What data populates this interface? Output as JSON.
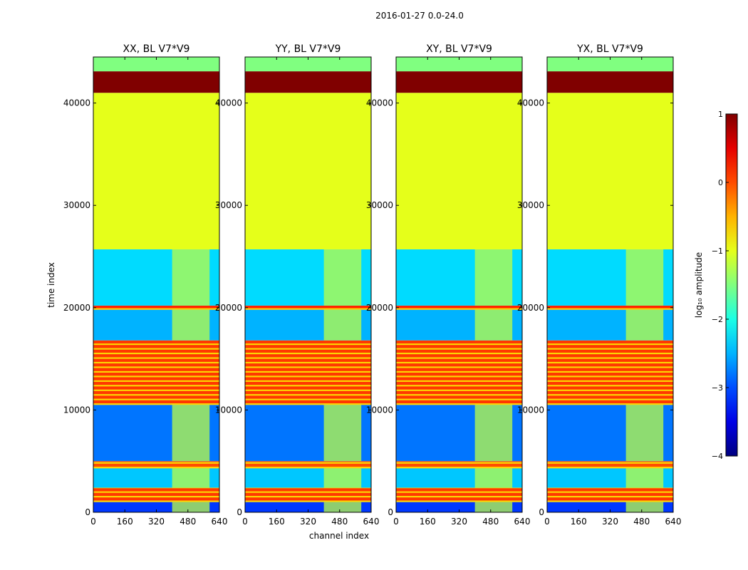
{
  "suptitle": "2016-01-27 0.0-24.0",
  "xlabel": "channel index",
  "ylabel": "time index",
  "chart_data": {
    "type": "heatmap",
    "title": "2016-01-27 0.0-24.0",
    "xlabel": "channel index",
    "ylabel": "time index",
    "xlim": [
      0,
      640
    ],
    "ylim": [
      0,
      44500
    ],
    "xticks": [
      0,
      160,
      320,
      480,
      640
    ],
    "yticks": [
      0,
      10000,
      20000,
      30000,
      40000
    ],
    "panels": [
      {
        "title": "XX, BL V7*V9"
      },
      {
        "title": "YY, BL V7*V9"
      },
      {
        "title": "XY, BL V7*V9"
      },
      {
        "title": "YX, BL V7*V9"
      }
    ],
    "colorbar": {
      "label": "log₁₀ amplitude",
      "min": -4,
      "max": 1,
      "ticks": [
        1,
        0,
        -1,
        -2,
        -3,
        -4
      ],
      "tick_labels": [
        "1",
        "0",
        "−1",
        "−2",
        "−3",
        "−4"
      ],
      "colormap": "jet"
    },
    "bands": [
      {
        "from": 0,
        "to": 1000,
        "level": -3.1
      },
      {
        "from": 1000,
        "to": 2400,
        "level": 0.1
      },
      {
        "from": 2400,
        "to": 4300,
        "level": -2.4
      },
      {
        "from": 4300,
        "to": 5000,
        "level": 0.0
      },
      {
        "from": 5000,
        "to": 10500,
        "level": -2.8
      },
      {
        "from": 10500,
        "to": 16800,
        "level": 0.1
      },
      {
        "from": 16800,
        "to": 19800,
        "level": -2.5
      },
      {
        "from": 19800,
        "to": 20200,
        "level": 0.2
      },
      {
        "from": 20200,
        "to": 25700,
        "level": -2.3
      },
      {
        "from": 25700,
        "to": 41000,
        "level": -1.0
      },
      {
        "from": 41000,
        "to": 43100,
        "level": 1.0
      },
      {
        "from": 43100,
        "to": 44500,
        "level": -1.5
      }
    ]
  }
}
